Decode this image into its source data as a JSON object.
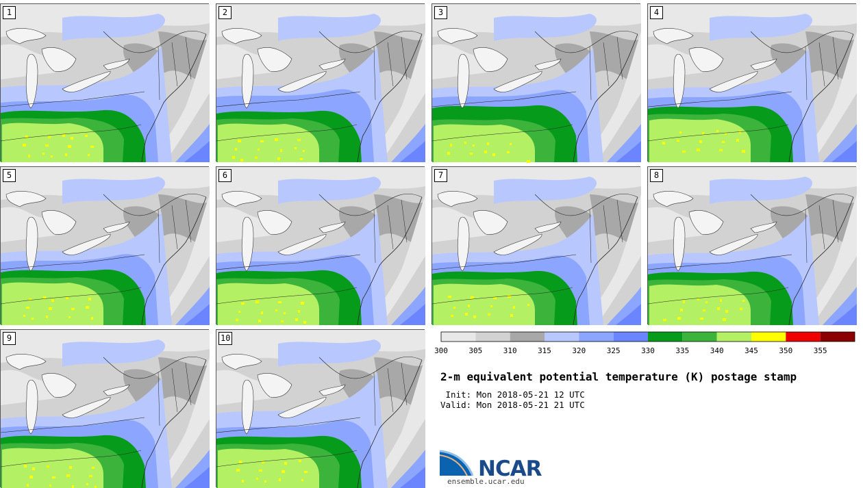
{
  "title": "2-m equivalent potential temperature (K) postage stamp",
  "init_label": " Init: Mon 2018-05-21 12 UTC",
  "valid_label": "Valid: Mon 2018-05-21 21 UTC",
  "logo_text": "NCAR",
  "site": "ensemble.ucar.edu",
  "members": [
    "1",
    "2",
    "3",
    "4",
    "5",
    "6",
    "7",
    "8",
    "9",
    "10"
  ],
  "colorbar": {
    "ticks": [
      "300",
      "305",
      "310",
      "315",
      "320",
      "325",
      "330",
      "335",
      "340",
      "345",
      "350",
      "355"
    ],
    "colors": [
      "#e8e8e8",
      "#d2d2d2",
      "#a8a8a8",
      "#b8c8ff",
      "#8ca5ff",
      "#6a85ff",
      "#079b1c",
      "#3cb43c",
      "#b4f064",
      "#ffff00",
      "#ee0000",
      "#8b0000"
    ]
  },
  "map_colors": {
    "light": "#e8e8e8",
    "mid_gray": "#d2d2d2",
    "dark_gray": "#a8a8a8",
    "pale_blue": "#b8c8ff",
    "blue": "#8ca5ff",
    "deep_blue": "#6a85ff",
    "dark_green": "#079b1c",
    "green": "#3cb43c",
    "light_green": "#b4f064",
    "yellow": "#ffff00",
    "lakes": "#f4f4f4"
  }
}
